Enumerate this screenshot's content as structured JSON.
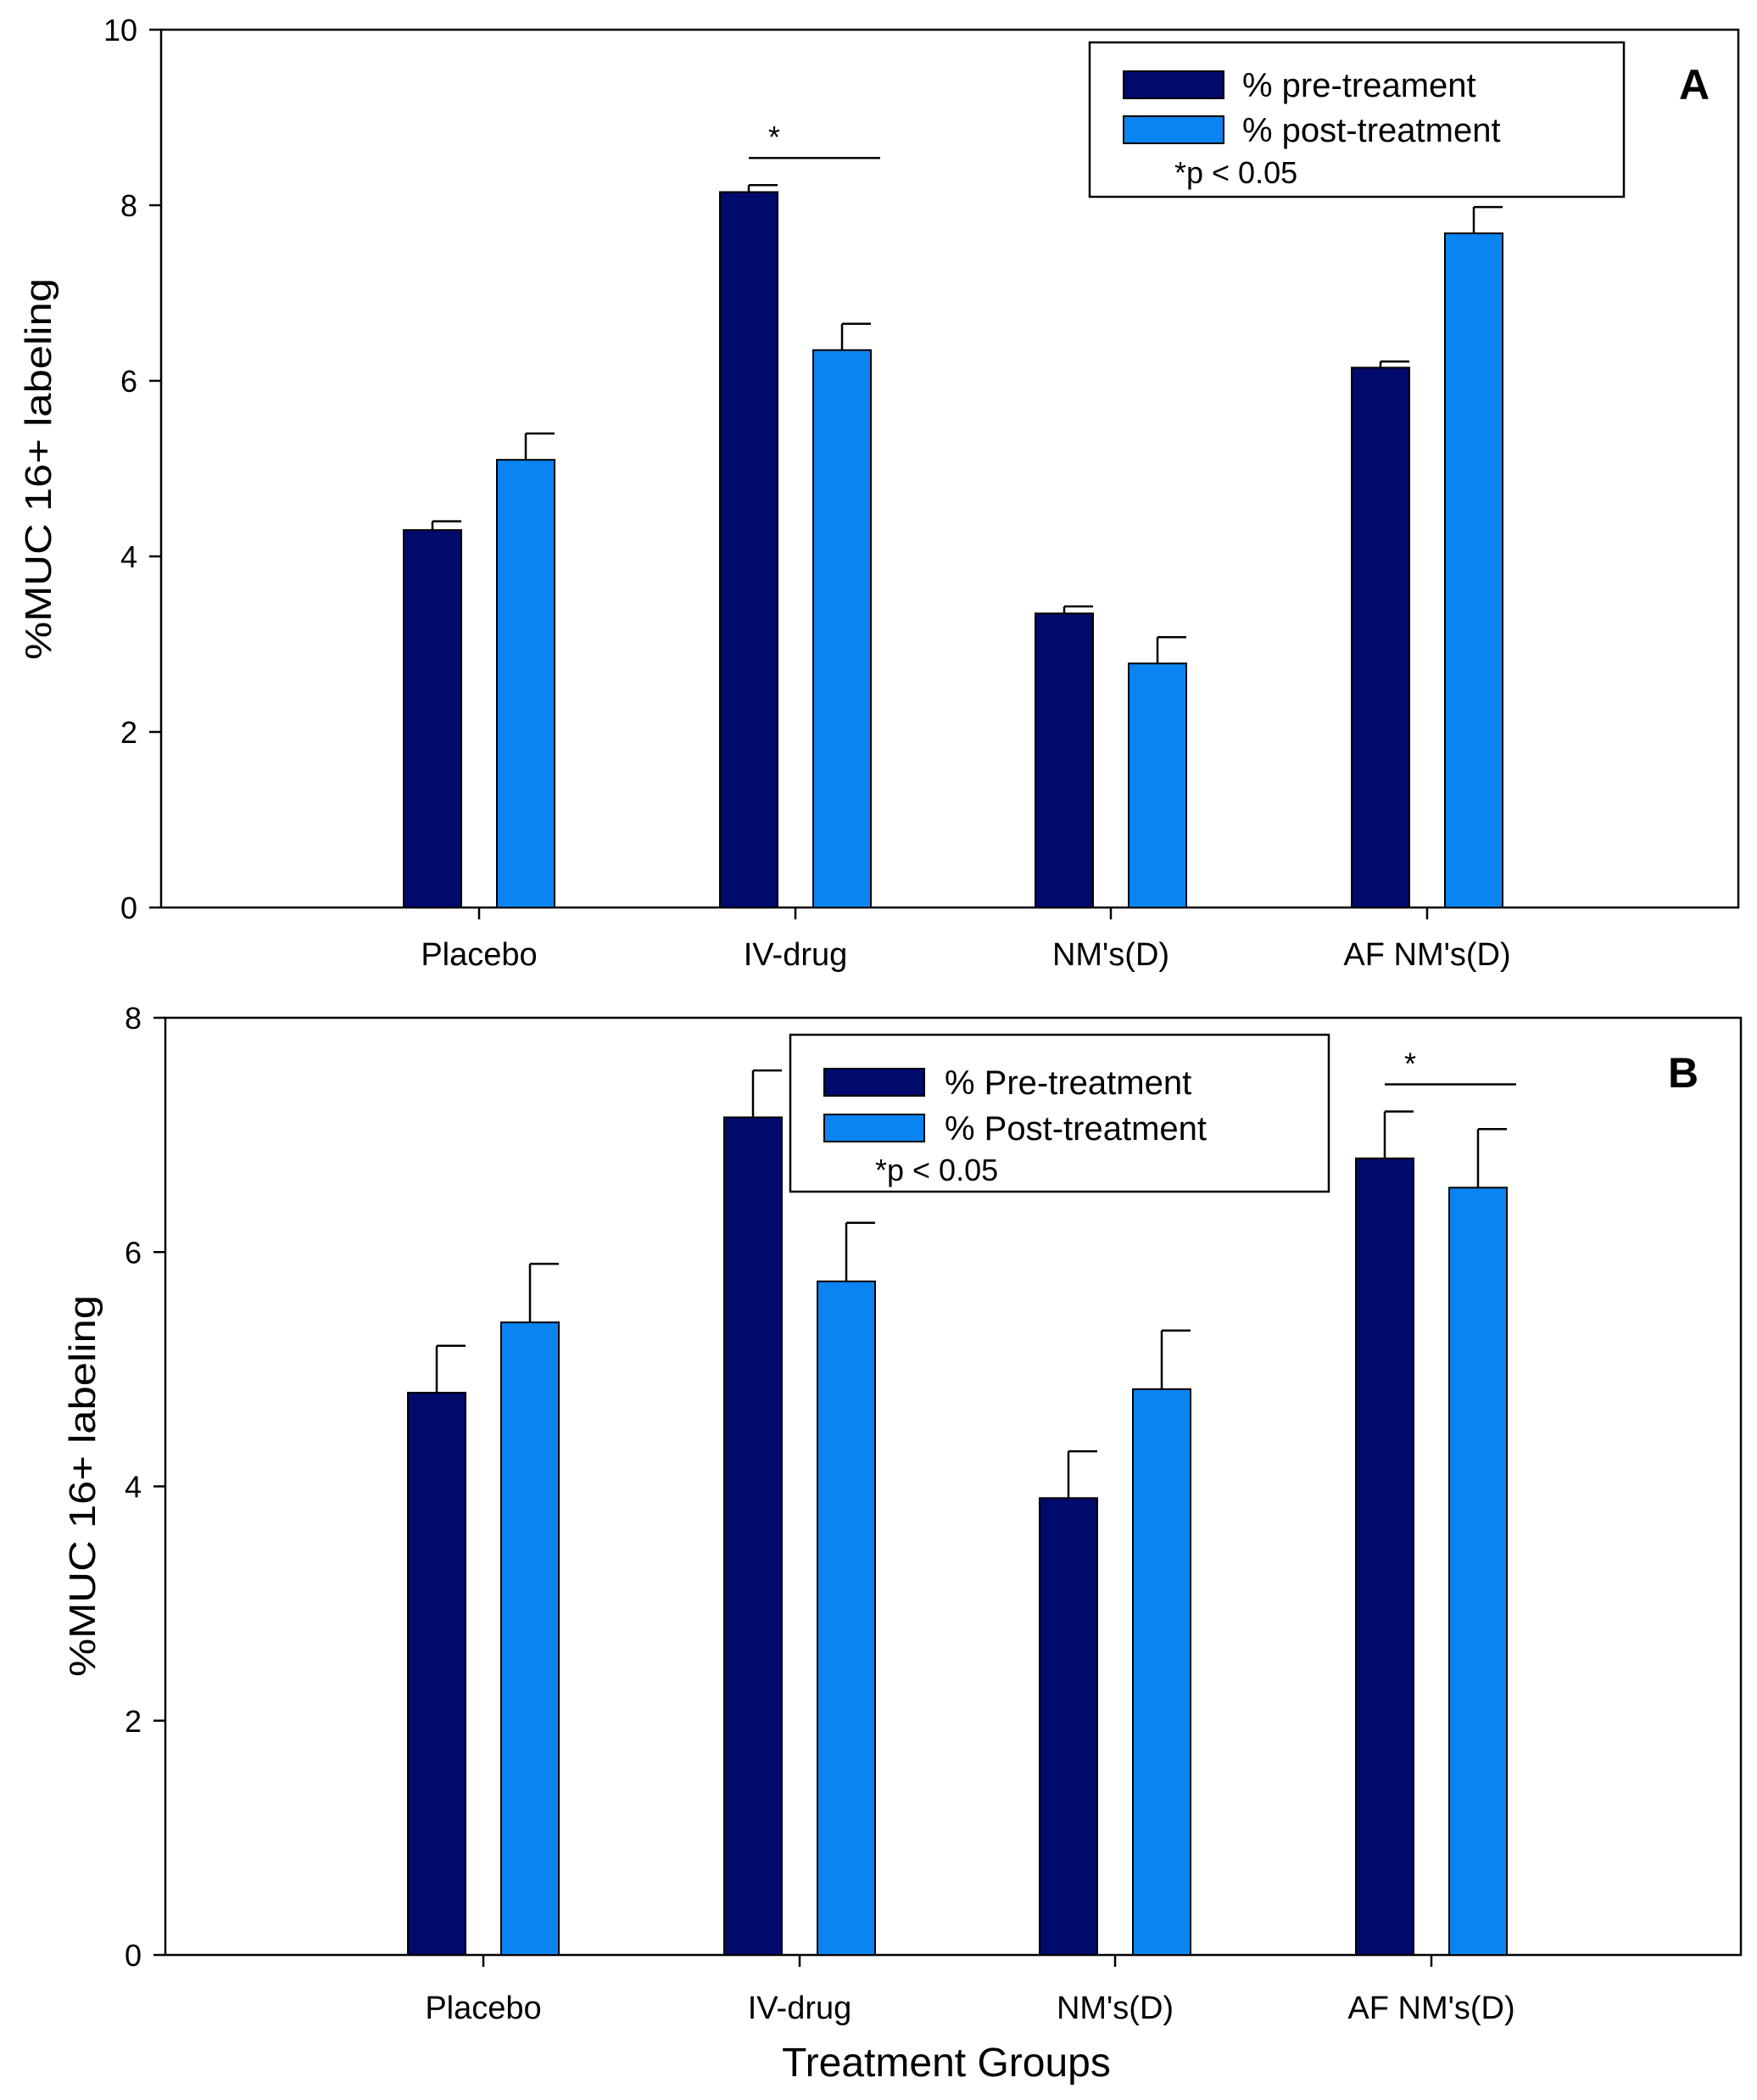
{
  "chart_data": [
    {
      "type": "bar",
      "panel": "A",
      "categories": [
        "Placebo",
        "IV-drug",
        "NM's(D)",
        "AF NM's(D)"
      ],
      "series": [
        {
          "name": "% pre-treament",
          "color": "#000a6b",
          "values": [
            4.3,
            8.15,
            3.35,
            6.15
          ],
          "errors": [
            0.1,
            0.08,
            0.08,
            0.07
          ]
        },
        {
          "name": "% post-treatment",
          "color": "#0a84f0",
          "values": [
            5.1,
            6.35,
            2.78,
            7.68
          ],
          "errors": [
            0.3,
            0.3,
            0.3,
            0.3
          ]
        }
      ],
      "ylabel": "%MUC 16+ labeling",
      "xlabel": "",
      "ylim": [
        0,
        10
      ],
      "yticks": [
        0,
        2,
        4,
        6,
        8,
        10
      ],
      "legend": {
        "position": "top-right",
        "note": "*p < 0.05"
      },
      "significance": [
        {
          "category": "IV-drug",
          "label": "*"
        }
      ]
    },
    {
      "type": "bar",
      "panel": "B",
      "categories": [
        "Placebo",
        "IV-drug",
        "NM's(D)",
        "AF NM's(D)"
      ],
      "series": [
        {
          "name": "% Pre-treatment",
          "color": "#000a6b",
          "values": [
            4.8,
            7.15,
            3.9,
            6.8
          ],
          "errors": [
            0.4,
            0.4,
            0.4,
            0.4
          ]
        },
        {
          "name": "% Post-treatment",
          "color": "#0a84f0",
          "values": [
            5.4,
            5.75,
            4.83,
            6.55
          ],
          "errors": [
            0.5,
            0.5,
            0.5,
            0.5
          ]
        }
      ],
      "ylabel": "%MUC 16+ labeling",
      "xlabel": "Treatment Groups",
      "ylim": [
        0,
        8
      ],
      "yticks": [
        0,
        2,
        4,
        6,
        8
      ],
      "legend": {
        "position": "top-center",
        "note": "*p < 0.05"
      },
      "significance": [
        {
          "category": "AF NM's(D)",
          "label": "*"
        }
      ]
    }
  ]
}
